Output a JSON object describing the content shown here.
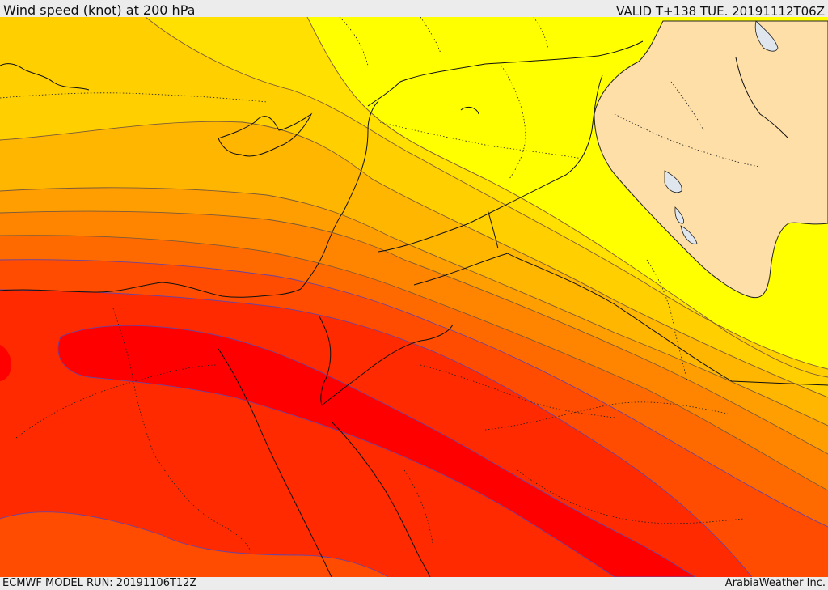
{
  "header": {
    "title": "Wind speed (knot) at 200 hPa",
    "valid": "VALID T+138 TUE. 20191112T06Z"
  },
  "footer": {
    "model_run": "ECMWF MODEL RUN: 20191106T12Z",
    "brand": "ArabiaWeather Inc."
  },
  "colors": {
    "speed_band_lowest": "#ffff00",
    "speed_band_2": "#ffe000",
    "speed_band_3": "#ffcf00",
    "speed_band_4": "#ffb600",
    "speed_band_5": "#ff9e00",
    "speed_band_6": "#ff8500",
    "speed_band_7": "#ff6a00",
    "speed_band_8": "#ff4c00",
    "speed_band_9": "#ff2a00",
    "speed_band_max": "#ff0000",
    "masked_region": "#fedfa8",
    "lake": "#dfe6ee",
    "isotach_line": "#7a5a3a",
    "isotach_line_strong": "#6a44a0"
  }
}
